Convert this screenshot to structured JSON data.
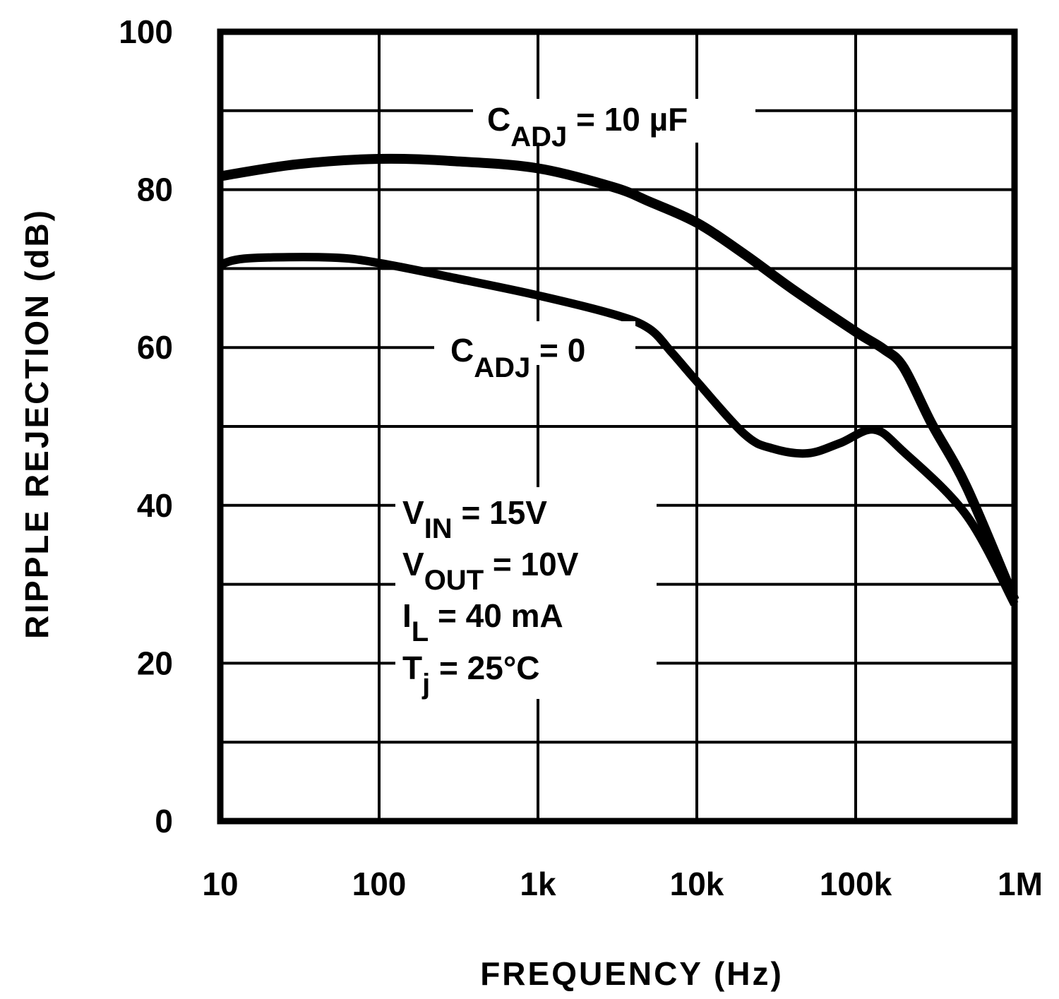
{
  "chart_data": {
    "type": "line",
    "xlabel": "FREQUENCY (Hz)",
    "ylabel": "RIPPLE REJECTION (dB)",
    "xscale": "log",
    "xlim": [
      10,
      1000000
    ],
    "ylim": [
      0,
      100
    ],
    "grid": true,
    "x_ticks": [
      10,
      100,
      1000,
      10000,
      100000,
      1000000
    ],
    "x_tick_labels": [
      "10",
      "100",
      "1k",
      "10k",
      "100k",
      "1M"
    ],
    "y_ticks": [
      0,
      20,
      40,
      60,
      80,
      100
    ],
    "y_tick_labels": [
      "0",
      "20",
      "40",
      "60",
      "80",
      "100"
    ],
    "y_grid_step": 10,
    "colors": {
      "line": "#000000",
      "background": "#ffffff"
    },
    "series": [
      {
        "label": {
          "main": "C",
          "sub": "ADJ",
          "rest": " = 10 µF"
        },
        "x": [
          10,
          30,
          100,
          300,
          1000,
          3000,
          5000,
          10000,
          20000,
          40000,
          100000,
          150000,
          200000,
          300000,
          500000,
          1000000
        ],
        "y": [
          81.7,
          83.2,
          83.9,
          83.6,
          82.7,
          80.3,
          78.5,
          75.8,
          71.8,
          67.4,
          62,
          59.8,
          57.5,
          50.4,
          42.3,
          28
        ]
      },
      {
        "label": {
          "main": "C",
          "sub": "ADJ",
          "rest": " = 0"
        },
        "x": [
          10,
          15,
          50,
          100,
          300,
          1000,
          3000,
          5000,
          7000,
          10000,
          20000,
          30000,
          50000,
          80000,
          130000,
          200000,
          500000,
          1000000
        ],
        "y": [
          70.5,
          71.3,
          71.4,
          70.7,
          68.8,
          66.6,
          64.2,
          62.4,
          59.3,
          55.7,
          49,
          47.2,
          46.6,
          47.9,
          49.6,
          46.8,
          38.7,
          27.5
        ]
      }
    ],
    "conditions": [
      {
        "main": "V",
        "sub": "IN",
        "rest": " = 15V"
      },
      {
        "main": "V",
        "sub": "OUT",
        "rest": " = 10V"
      },
      {
        "main": "I",
        "sub": "L",
        "rest": " = 40 mA"
      },
      {
        "main": "T",
        "sub": "j",
        "rest": " = 25°C"
      }
    ]
  }
}
